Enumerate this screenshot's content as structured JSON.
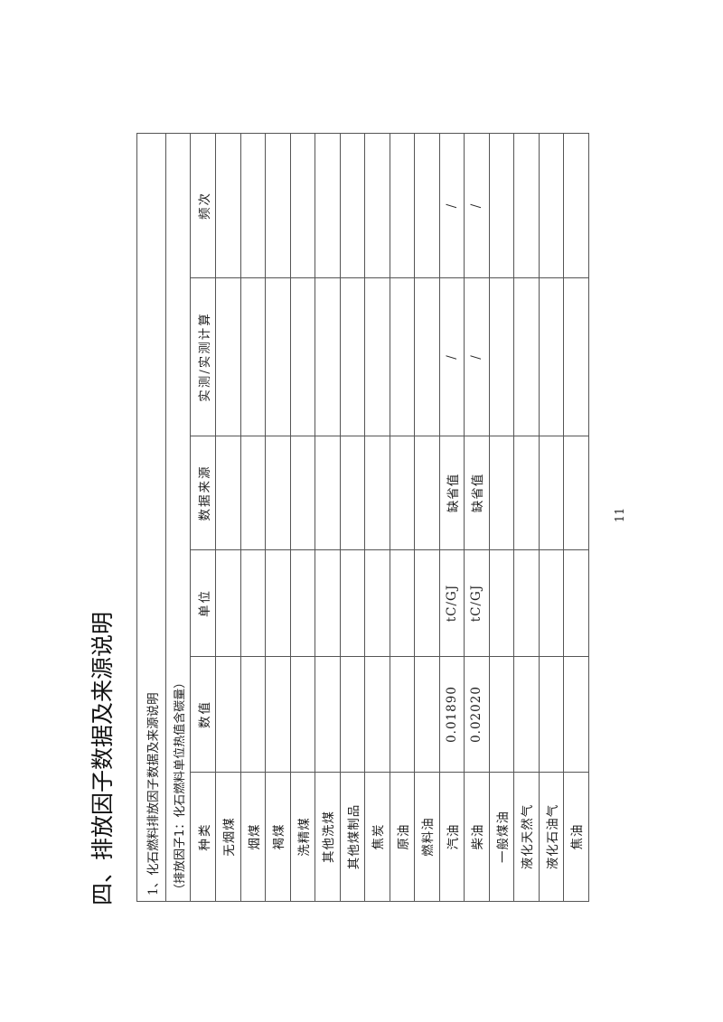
{
  "heading": "四、排放因子数据及来源说明",
  "page_number": "11",
  "table": {
    "section_title": "1、化石燃料排放因子数据及来源说明",
    "subtitle": "（排放因子1：化石燃料单位热值含碳量）",
    "headers": [
      "种类",
      "数值",
      "单位",
      "数据来源",
      "实测/实测计算",
      "频次"
    ],
    "rows": [
      {
        "type": "无烟煤",
        "value": "",
        "unit": "",
        "source": "",
        "measured": "",
        "frequency": ""
      },
      {
        "type": "烟煤",
        "value": "",
        "unit": "",
        "source": "",
        "measured": "",
        "frequency": ""
      },
      {
        "type": "褐煤",
        "value": "",
        "unit": "",
        "source": "",
        "measured": "",
        "frequency": ""
      },
      {
        "type": "洗精煤",
        "value": "",
        "unit": "",
        "source": "",
        "measured": "",
        "frequency": ""
      },
      {
        "type": "其他洗煤",
        "value": "",
        "unit": "",
        "source": "",
        "measured": "",
        "frequency": ""
      },
      {
        "type": "其他煤制品",
        "value": "",
        "unit": "",
        "source": "",
        "measured": "",
        "frequency": ""
      },
      {
        "type": "焦炭",
        "value": "",
        "unit": "",
        "source": "",
        "measured": "",
        "frequency": ""
      },
      {
        "type": "原油",
        "value": "",
        "unit": "",
        "source": "",
        "measured": "",
        "frequency": ""
      },
      {
        "type": "燃料油",
        "value": "",
        "unit": "",
        "source": "",
        "measured": "",
        "frequency": ""
      },
      {
        "type": "汽油",
        "value": "0.01890",
        "unit": "tC/GJ",
        "source": "缺省值",
        "measured": "/",
        "frequency": "/"
      },
      {
        "type": "柴油",
        "value": "0.02020",
        "unit": "tC/GJ",
        "source": "缺省值",
        "measured": "/",
        "frequency": "/"
      },
      {
        "type": "一般煤油",
        "value": "",
        "unit": "",
        "source": "",
        "measured": "",
        "frequency": ""
      },
      {
        "type": "液化天然气",
        "value": "",
        "unit": "",
        "source": "",
        "measured": "",
        "frequency": ""
      },
      {
        "type": "液化石油气",
        "value": "",
        "unit": "",
        "source": "",
        "measured": "",
        "frequency": ""
      },
      {
        "type": "焦油",
        "value": "",
        "unit": "",
        "source": "",
        "measured": "",
        "frequency": ""
      }
    ]
  }
}
